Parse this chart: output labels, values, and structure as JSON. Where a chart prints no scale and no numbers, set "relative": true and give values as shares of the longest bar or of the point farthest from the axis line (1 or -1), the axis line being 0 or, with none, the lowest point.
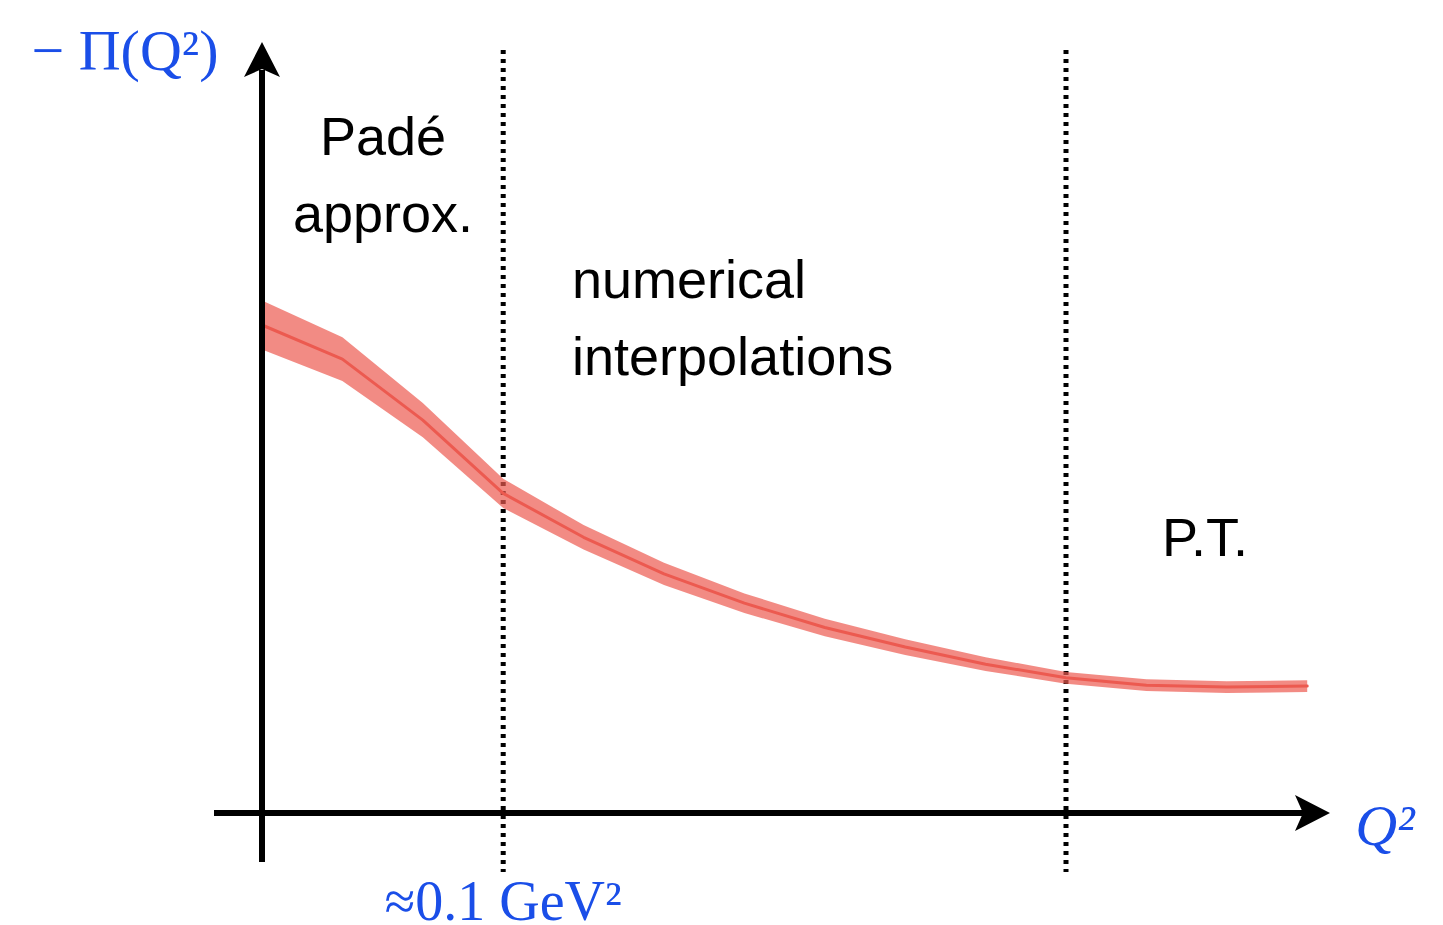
{
  "chart_data": {
    "type": "line",
    "relative": true,
    "xlabel": "Q²",
    "ylabel": "− Π(Q²)",
    "categories": [
      null,
      null,
      null,
      null,
      null,
      null,
      null,
      null,
      null,
      null,
      null,
      null,
      null,
      null
    ],
    "series": [
      {
        "color": "#ec5a50",
        "values": [
          1,
          0.93,
          0.805,
          0.655,
          0.565,
          0.49,
          0.43,
          0.38,
          0.34,
          0.305,
          0.277,
          0.262,
          0.258,
          0.26
        ],
        "lower": [
          0.95,
          0.885,
          0.77,
          0.625,
          0.54,
          0.467,
          0.41,
          0.362,
          0.324,
          0.291,
          0.265,
          0.25,
          0.246,
          0.248
        ],
        "upper": [
          1.05,
          0.975,
          0.84,
          0.685,
          0.59,
          0.513,
          0.45,
          0.398,
          0.356,
          0.319,
          0.289,
          0.274,
          0.27,
          0.272
        ]
      }
    ],
    "annotations": [
      "Padé\napprox.",
      "numerical\ninterpolations",
      "P.T.",
      "≈0.1 GeV²"
    ]
  }
}
